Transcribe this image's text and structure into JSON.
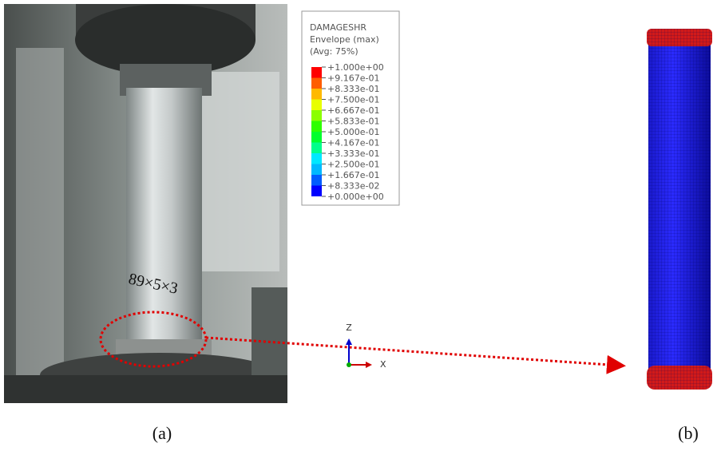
{
  "legend": {
    "title": [
      "DAMAGESHR",
      "Envelope (max)",
      "(Avg: 75%)"
    ],
    "labels": [
      "+1.000e+00",
      "+9.167e-01",
      "+8.333e-01",
      "+7.500e-01",
      "+6.667e-01",
      "+5.833e-01",
      "+5.000e-01",
      "+4.167e-01",
      "+3.333e-01",
      "+2.500e-01",
      "+1.667e-01",
      "+8.333e-02",
      "+0.000e+00"
    ],
    "colors": [
      "#ff0000",
      "#ff5d00",
      "#ffb900",
      "#e8ff00",
      "#8bff00",
      "#2eff00",
      "#00ff2e",
      "#00ff8b",
      "#00e8ff",
      "#00b9ff",
      "#005dff",
      "#0000ff"
    ]
  },
  "triad": {
    "z": "Z",
    "x": "X"
  },
  "photo_annotation": "89×5×3",
  "captions": {
    "a": "(a)",
    "b": "(b)"
  }
}
